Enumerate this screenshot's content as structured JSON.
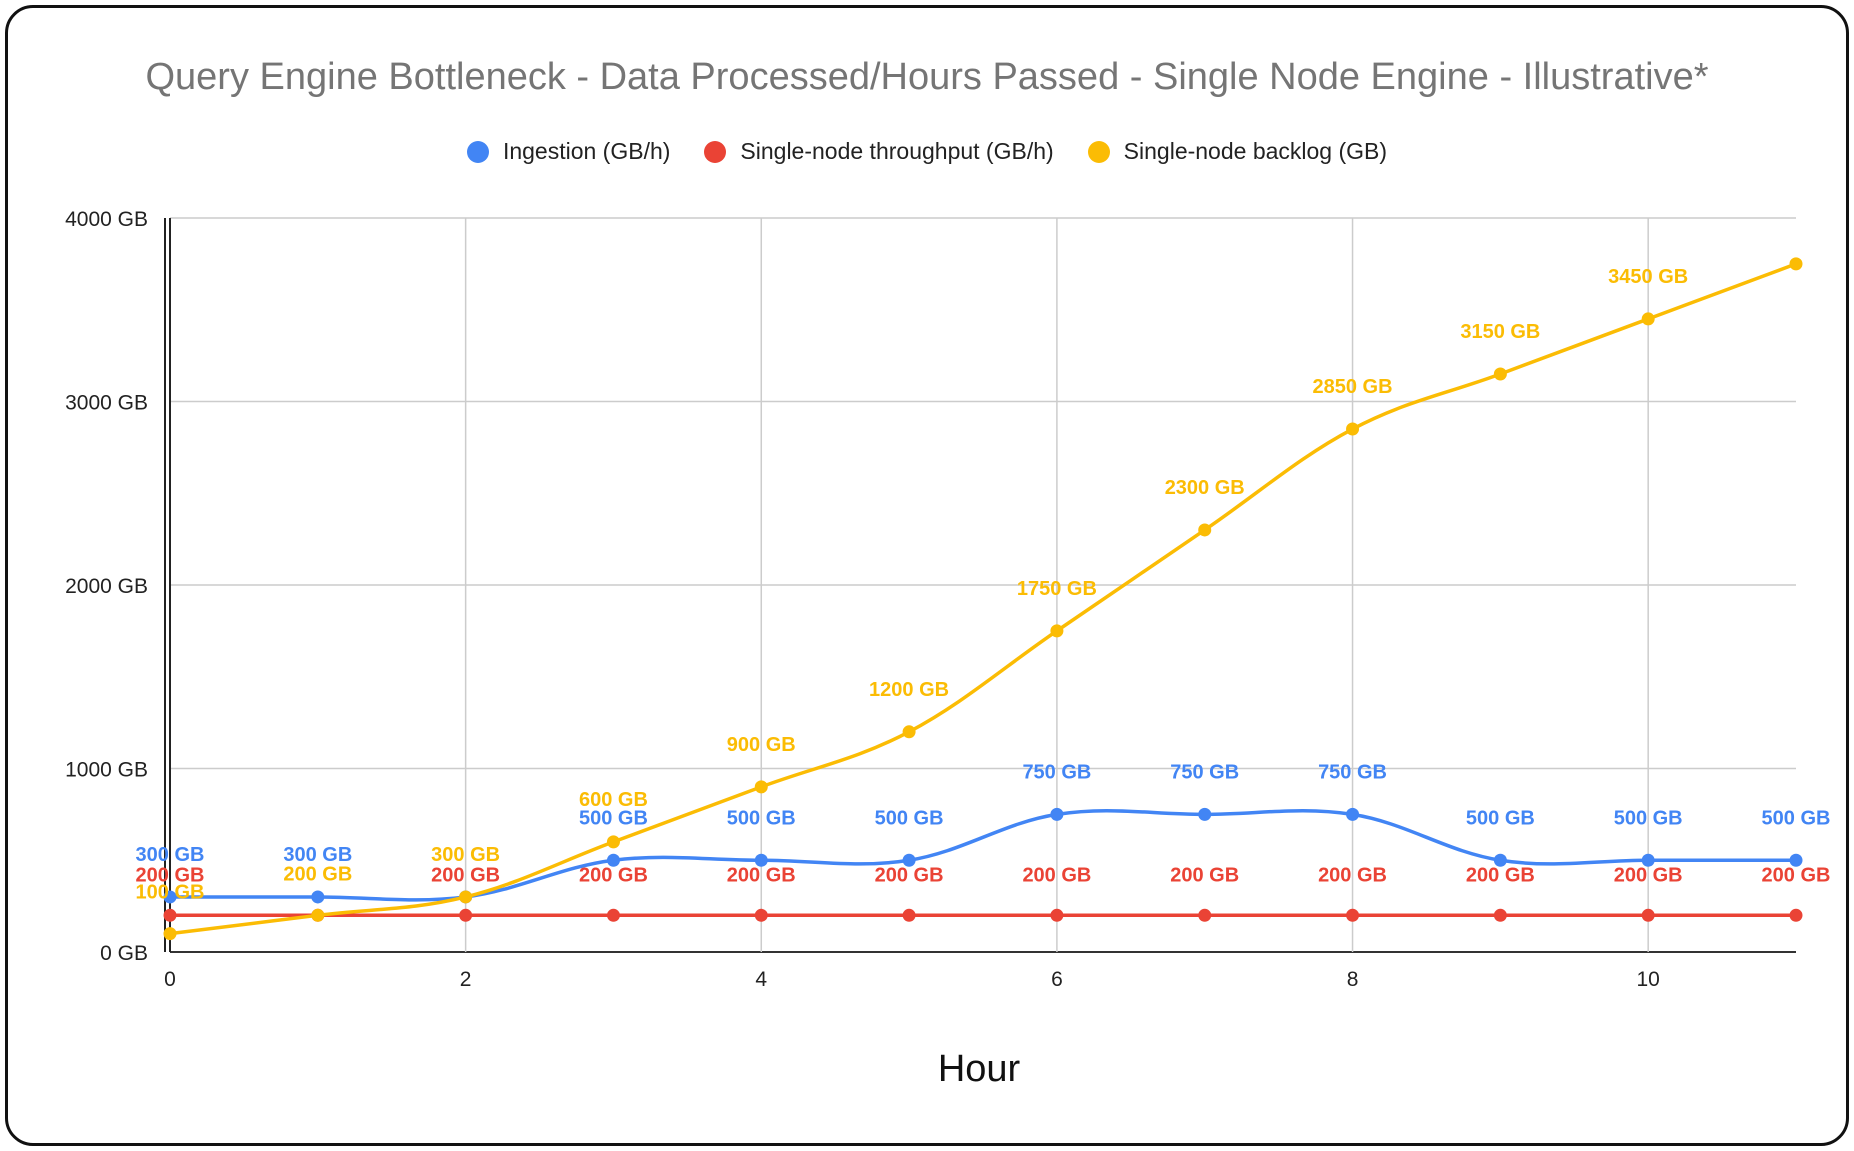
{
  "chart_data": {
    "type": "line",
    "title": "Query Engine Bottleneck - Data Processed/Hours Passed - Single Node Engine - Illustrative*",
    "xlabel": "Hour",
    "ylabel": "",
    "x": [
      0,
      1,
      2,
      3,
      4,
      5,
      6,
      7,
      8,
      9,
      10,
      11
    ],
    "xlim": [
      0,
      11
    ],
    "ylim": [
      0,
      4000
    ],
    "x_ticks": [
      "0",
      "2",
      "4",
      "6",
      "8",
      "10"
    ],
    "y_ticks": [
      "0 GB",
      "1000 GB",
      "2000 GB",
      "3000 GB",
      "4000 GB"
    ],
    "grid": true,
    "legend_position": "top",
    "series": [
      {
        "name": "Ingestion (GB/h)",
        "color": "#4285f4",
        "values": [
          300,
          300,
          300,
          500,
          500,
          500,
          750,
          750,
          750,
          500,
          500,
          500
        ],
        "labels": [
          "300 GB",
          "300 GB",
          "",
          "500 GB",
          "500 GB",
          "500 GB",
          "750 GB",
          "750 GB",
          "750 GB",
          "500 GB",
          "500 GB",
          "500 GB"
        ]
      },
      {
        "name": "Single-node throughput (GB/h)",
        "color": "#ea4335",
        "values": [
          200,
          200,
          200,
          200,
          200,
          200,
          200,
          200,
          200,
          200,
          200,
          200
        ],
        "labels": [
          "200 GB",
          "",
          "200 GB",
          "200 GB",
          "200 GB",
          "200 GB",
          "200 GB",
          "200 GB",
          "200 GB",
          "200 GB",
          "200 GB",
          "200 GB"
        ]
      },
      {
        "name": "Single-node backlog (GB)",
        "color": "#fbbc04",
        "values": [
          100,
          200,
          300,
          600,
          900,
          1200,
          1750,
          2300,
          2850,
          3150,
          3450,
          3750
        ],
        "labels": [
          "100 GB",
          "200 GB",
          "300 GB",
          "600 GB",
          "900 GB",
          "1200 GB",
          "1750 GB",
          "2300 GB",
          "2850 GB",
          "3150 GB",
          "3450 GB",
          ""
        ]
      }
    ]
  }
}
